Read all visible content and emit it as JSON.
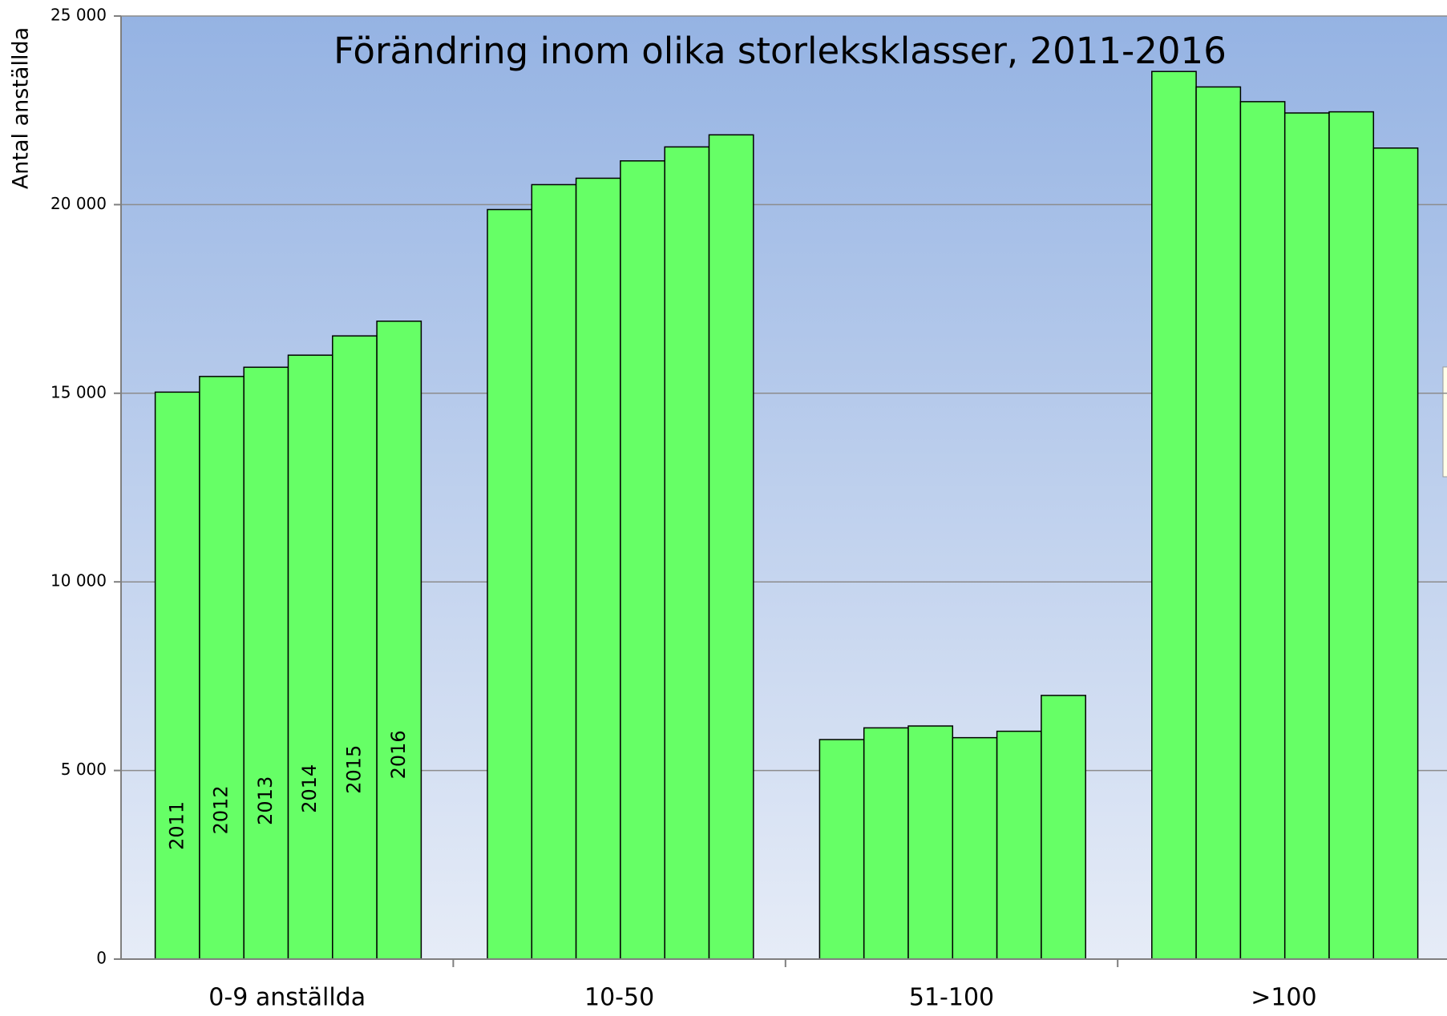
{
  "chart_data": {
    "type": "bar",
    "title": "Förändring inom olika storleksklasser, 2011-2016",
    "y_label": "Antal anställda",
    "categories": [
      "0-9 anställda",
      "10-50",
      "51-100",
      ">100"
    ],
    "series": [
      {
        "name": "2011",
        "color": "#66ff66",
        "values": [
          15030,
          19870,
          5820,
          23530
        ]
      },
      {
        "name": "2012",
        "color": "#66ff66",
        "values": [
          15445,
          20530,
          6130,
          23120
        ]
      },
      {
        "name": "2013",
        "color": "#66ff66",
        "values": [
          15690,
          20700,
          6180,
          22730
        ]
      },
      {
        "name": "2014",
        "color": "#66ff66",
        "values": [
          16010,
          21160,
          5870,
          22430
        ]
      },
      {
        "name": "2015",
        "color": "#66ff66",
        "values": [
          16520,
          21530,
          6040,
          22460
        ]
      },
      {
        "name": "2016",
        "color": "#66ff66",
        "values": [
          16910,
          21850,
          6990,
          21500
        ]
      }
    ],
    "ylim": [
      0,
      25000
    ],
    "yticks": [
      0,
      {
        "value": 5000,
        "label": "5 000"
      },
      {
        "value": 10000,
        "label": "10 000"
      },
      {
        "value": 15000,
        "label": "15 000"
      },
      {
        "value": 20000,
        "label": "20 000"
      },
      {
        "value": 25000,
        "label": "25 000"
      }
    ],
    "grid": true
  }
}
